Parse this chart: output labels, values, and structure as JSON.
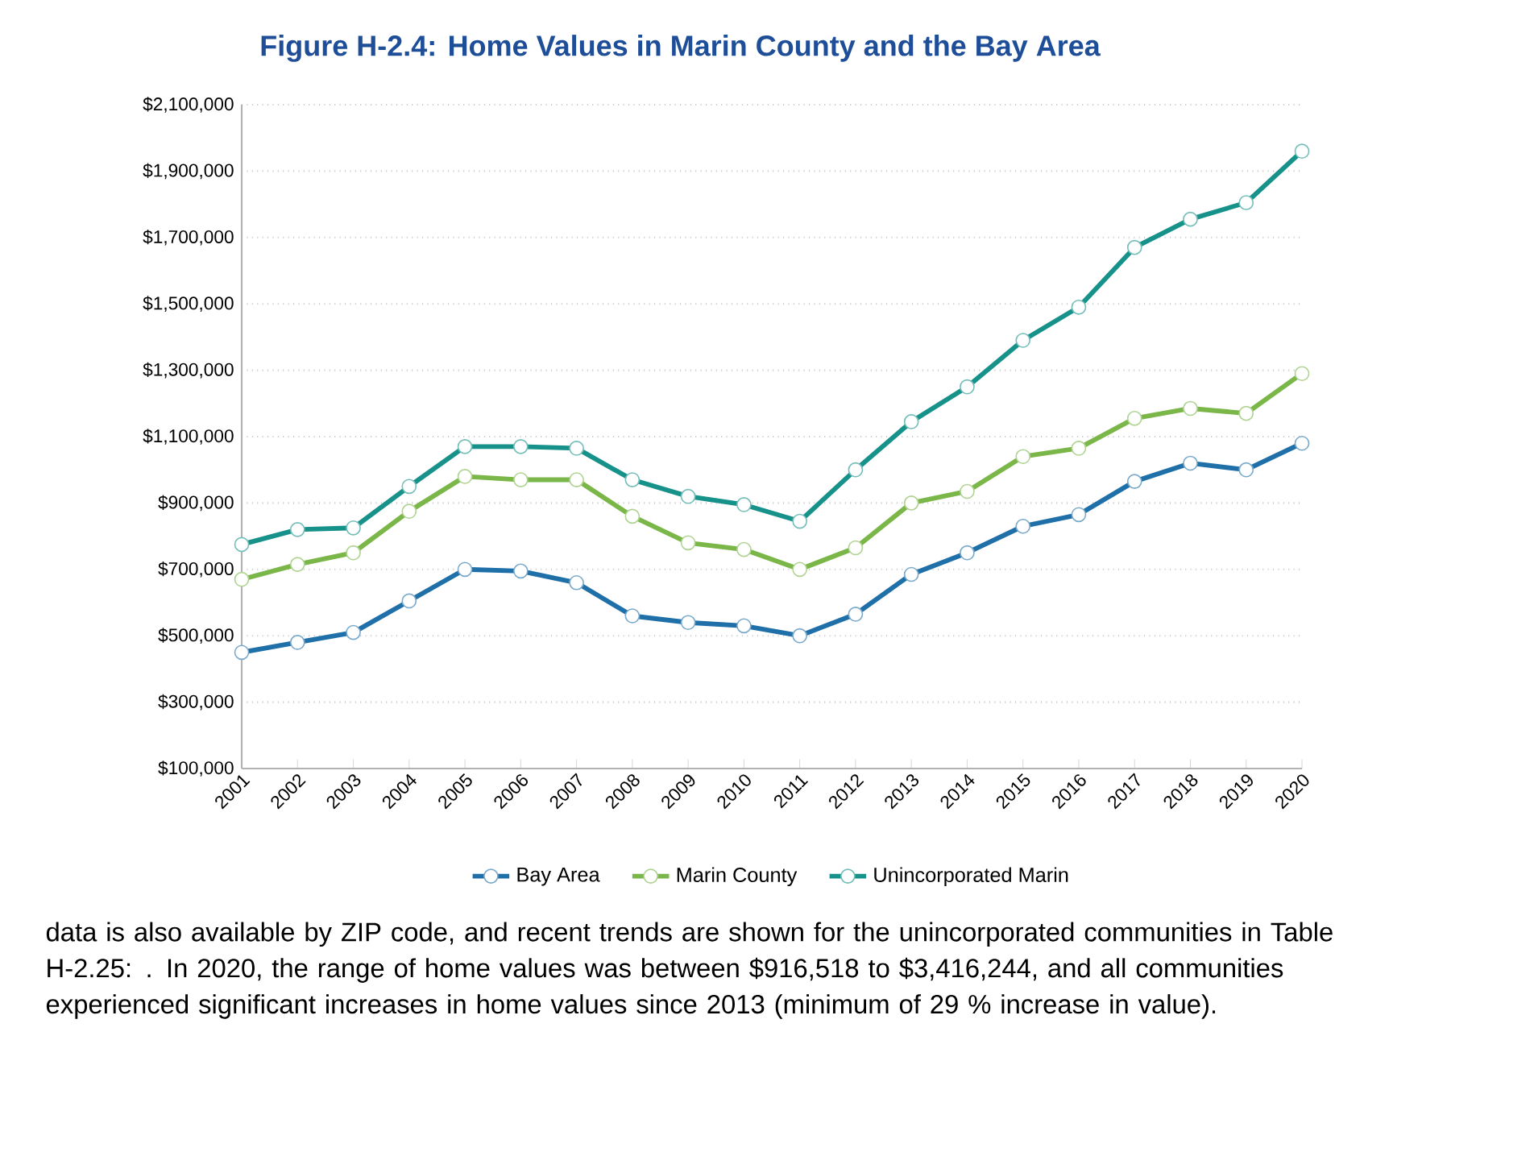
{
  "chart_data": {
    "type": "line",
    "title": "Figure H-2.4: Home Values in Marin County and the Bay Area",
    "categories": [
      "2001",
      "2002",
      "2003",
      "2004",
      "2005",
      "2006",
      "2007",
      "2008",
      "2009",
      "2010",
      "2011",
      "2012",
      "2013",
      "2014",
      "2015",
      "2016",
      "2017",
      "2018",
      "2019",
      "2020"
    ],
    "series": [
      {
        "name": "Bay Area",
        "color": "#1f6fa8",
        "values": [
          450000,
          480000,
          510000,
          605000,
          700000,
          695000,
          660000,
          560000,
          540000,
          530000,
          500000,
          565000,
          685000,
          750000,
          830000,
          865000,
          965000,
          1020000,
          1000000,
          1080000
        ]
      },
      {
        "name": "Marin County",
        "color": "#7ab648",
        "values": [
          670000,
          715000,
          750000,
          875000,
          980000,
          970000,
          970000,
          860000,
          780000,
          760000,
          700000,
          765000,
          900000,
          935000,
          1040000,
          1065000,
          1155000,
          1185000,
          1170000,
          1290000
        ]
      },
      {
        "name": "Unincorporated Marin",
        "color": "#17928a",
        "values": [
          775000,
          820000,
          825000,
          950000,
          1070000,
          1070000,
          1065000,
          970000,
          920000,
          895000,
          845000,
          1000000,
          1145000,
          1250000,
          1390000,
          1490000,
          1670000,
          1755000,
          1805000,
          1960000
        ]
      }
    ],
    "ylim": [
      100000,
      2100000
    ],
    "yticks": [
      {
        "value": 100000,
        "label": "$100,000"
      },
      {
        "value": 300000,
        "label": "$300,000"
      },
      {
        "value": 500000,
        "label": "$500,000"
      },
      {
        "value": 700000,
        "label": "$700,000"
      },
      {
        "value": 900000,
        "label": "$900,000"
      },
      {
        "value": 1100000,
        "label": "$1,100,000"
      },
      {
        "value": 1300000,
        "label": "$1,300,000"
      },
      {
        "value": 1500000,
        "label": "$1,500,000"
      },
      {
        "value": 1700000,
        "label": "$1,700,000"
      },
      {
        "value": 1900000,
        "label": "$1,900,000"
      },
      {
        "value": 2100000,
        "label": "$2,100,000"
      }
    ],
    "grid": "y",
    "legend": "bottom",
    "marker": "circle",
    "line_style": "solid",
    "annotations": [
      "data is also available by ZIP code, and recent trends are shown for the unincorporated communities in Table H-2.25: . In 2020, the range of home values was between $916,518 to $3,416,244, and all communities experienced significant increases in home values since 2013 (minimum of 29 % increase in value)."
    ]
  }
}
